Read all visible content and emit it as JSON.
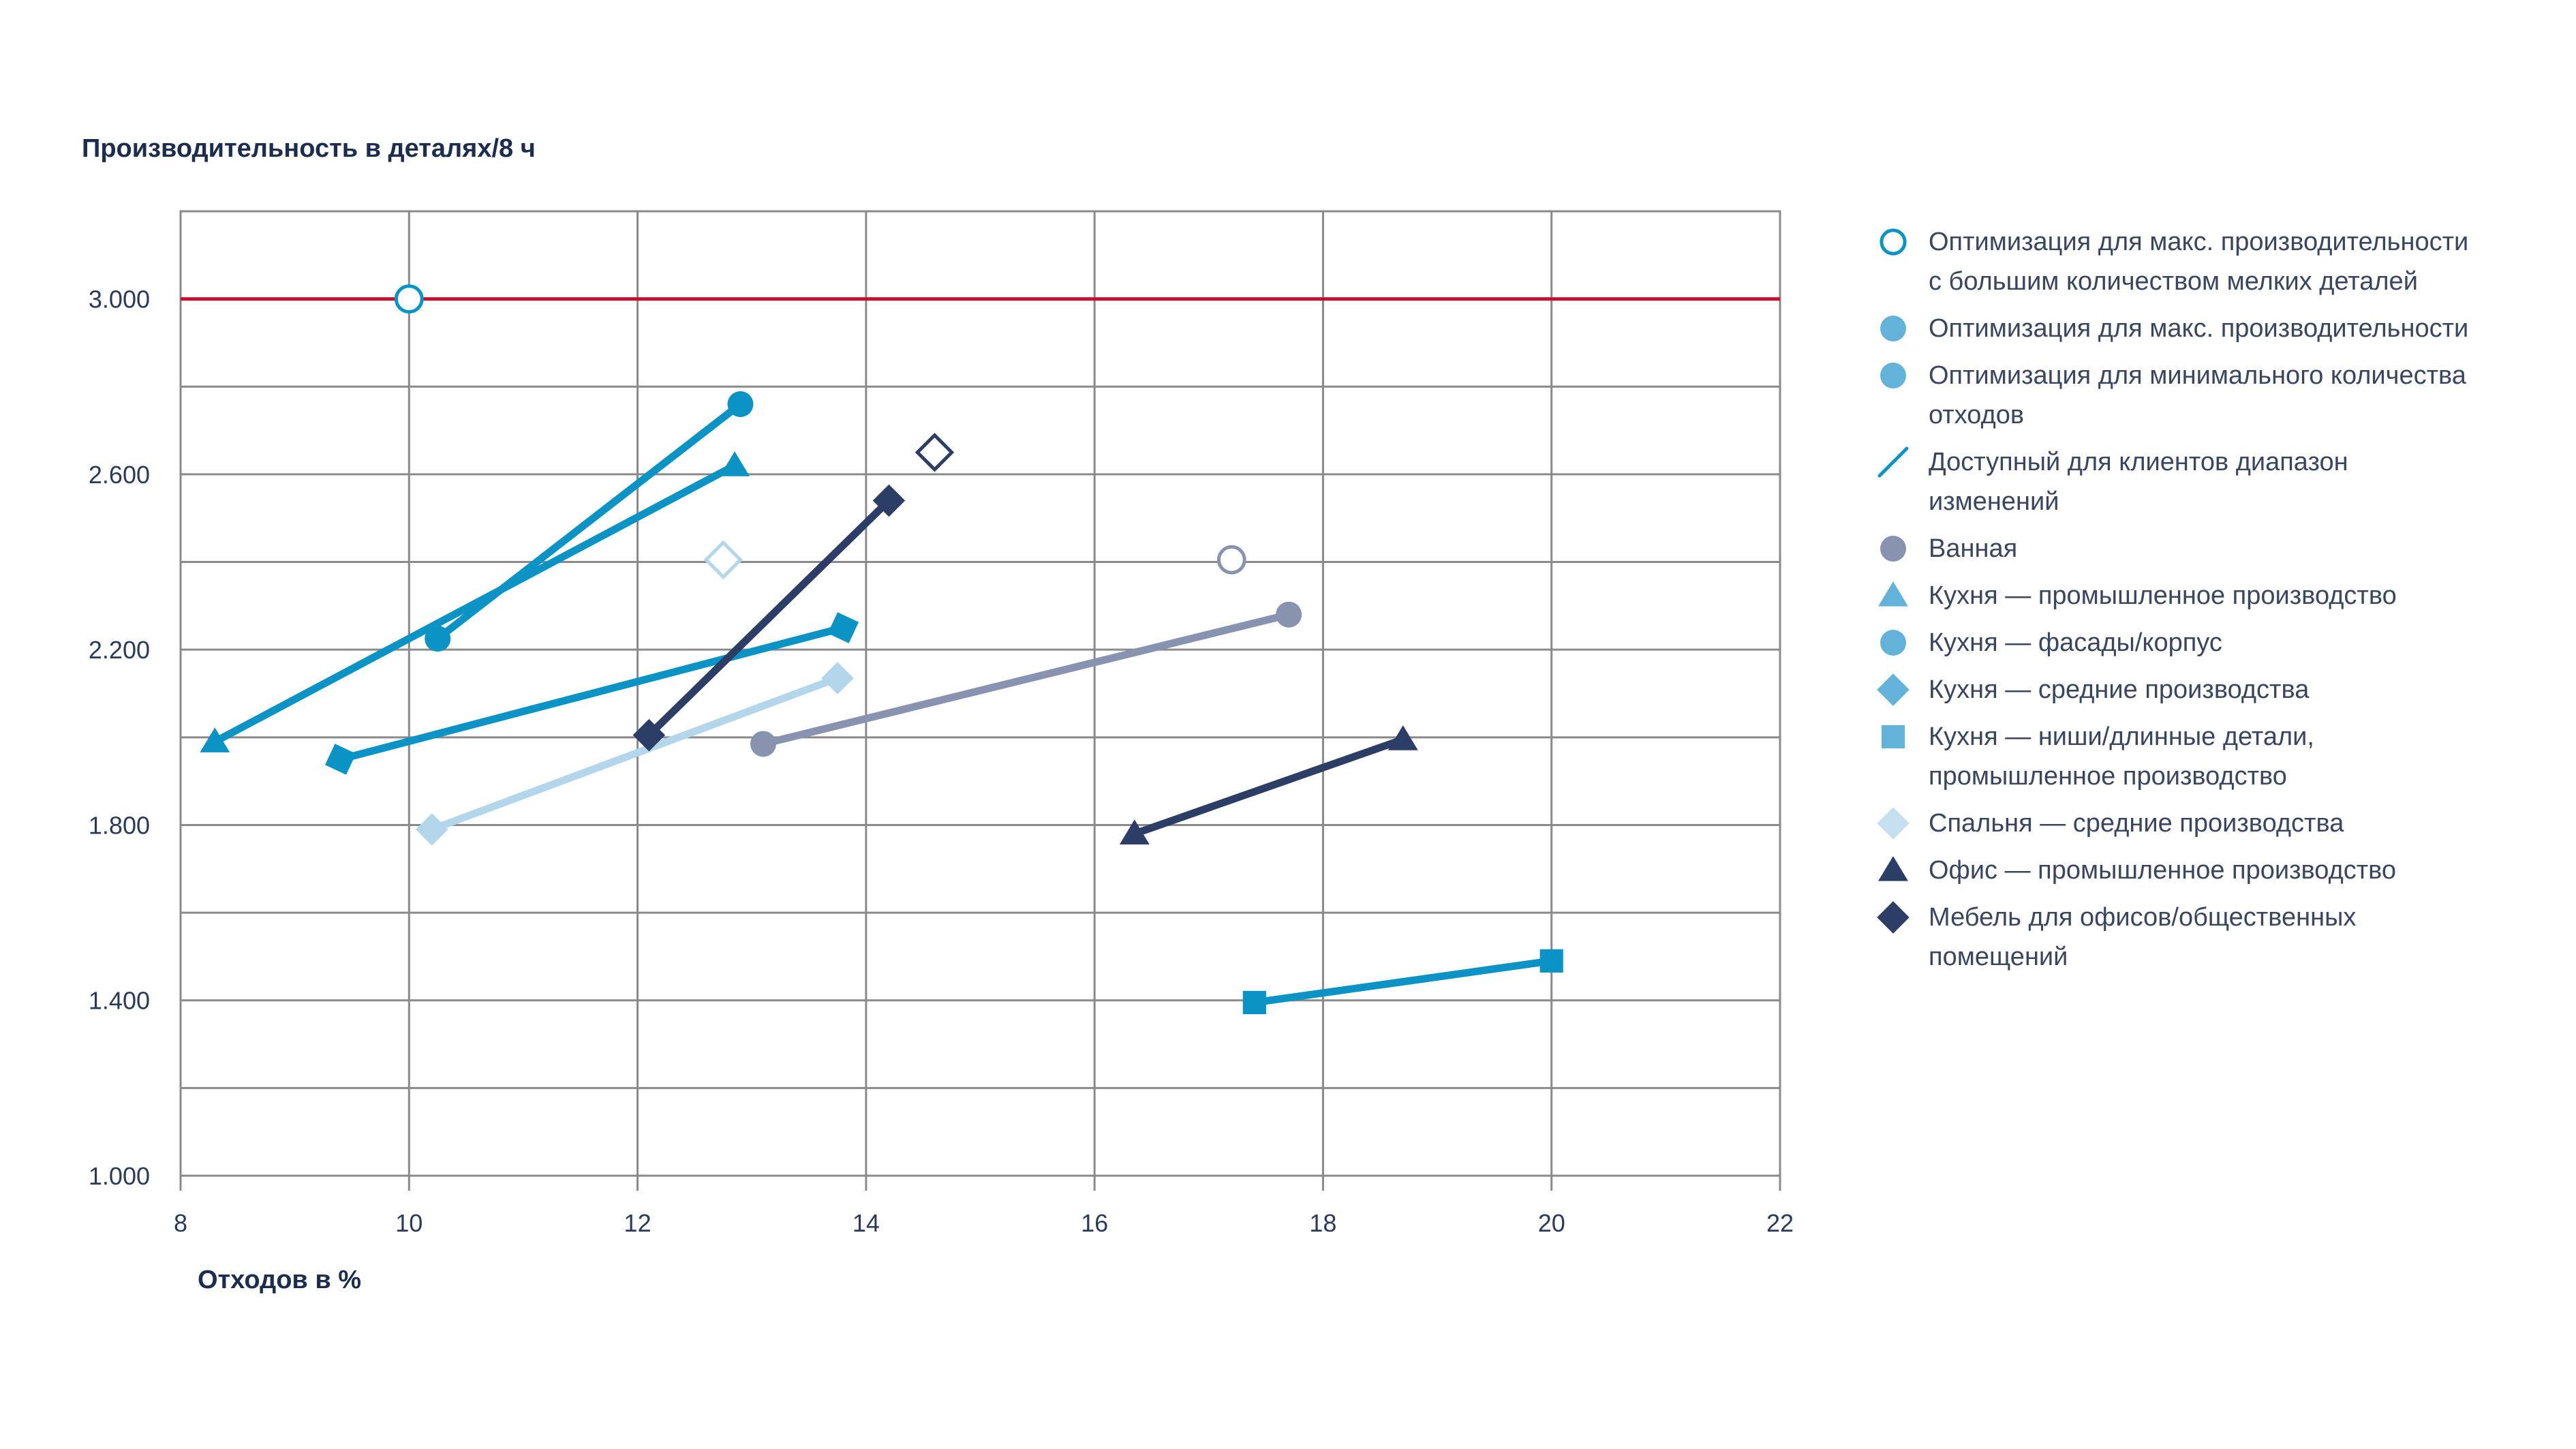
{
  "chart_data": {
    "type": "scatter",
    "title": "",
    "ylabel": "Производительность в деталях/8 ч",
    "xlabel": "Отходов в %",
    "xlim": [
      8,
      22
    ],
    "ylim": [
      1000,
      3200
    ],
    "x_ticks": [
      8,
      10,
      12,
      14,
      16,
      18,
      20,
      22
    ],
    "x_tick_labels": [
      "8",
      "10",
      "12",
      "14",
      "16",
      "18",
      "20",
      "22"
    ],
    "y_ticks": [
      1000,
      1400,
      1800,
      2200,
      2600,
      3000
    ],
    "y_tick_labels": [
      "1.000",
      "1.400",
      "1.800",
      "2.200",
      "2.600",
      "3.000"
    ],
    "grid": true,
    "legend_position": "right",
    "reference_line": {
      "y": 3000,
      "color": "#c8102e"
    },
    "colors": {
      "primary": "#0a93c4",
      "bath": "#8893b0",
      "bedroom": "#b3d6ea",
      "dark": "#2c3e66",
      "legend_light": "#62b2d9"
    },
    "series": [
      {
        "marker": "circle",
        "color": "#0a93c4",
        "points": [
          [
            10.25,
            2225
          ],
          [
            12.9,
            2760
          ]
        ]
      },
      {
        "marker": "triangle",
        "color": "#0a93c4",
        "points": [
          [
            8.3,
            1990
          ],
          [
            12.85,
            2620
          ]
        ]
      },
      {
        "marker": "square-diamond",
        "color": "#0a93c4",
        "points": [
          [
            9.4,
            1950
          ],
          [
            13.8,
            2250
          ]
        ]
      },
      {
        "marker": "square",
        "color": "#0a93c4",
        "points": [
          [
            17.4,
            1395
          ],
          [
            20.0,
            1490
          ]
        ]
      },
      {
        "marker": "diamond",
        "color": "#b3d6ea",
        "points": [
          [
            10.2,
            1790
          ],
          [
            13.75,
            2135
          ]
        ]
      },
      {
        "marker": "circle",
        "color": "#8893b0",
        "points": [
          [
            13.1,
            1985
          ],
          [
            17.7,
            2280
          ]
        ]
      },
      {
        "marker": "diamond",
        "color": "#2c3e66",
        "points": [
          [
            12.1,
            2005
          ],
          [
            14.2,
            2540
          ]
        ]
      },
      {
        "marker": "triangle",
        "color": "#2c3e66",
        "points": [
          [
            16.35,
            1780
          ],
          [
            18.7,
            1995
          ]
        ]
      }
    ],
    "annotations": [
      {
        "marker": "circle-open",
        "color": "#0a93c4",
        "x": 10.0,
        "y": 3000
      },
      {
        "marker": "diamond-open",
        "color": "#b3d6ea",
        "x": 12.75,
        "y": 2405
      },
      {
        "marker": "diamond-open",
        "color": "#2c3e66",
        "x": 14.6,
        "y": 2650
      },
      {
        "marker": "circle-open",
        "color": "#8893b0",
        "x": 17.2,
        "y": 2405
      }
    ],
    "legend": [
      {
        "icon": "circle-open",
        "color": "#0a93c4",
        "lines": [
          "Оптимизация для макс. производительности",
          "с большим количеством мелких деталей"
        ]
      },
      {
        "icon": "circle",
        "color": "#62b2d9",
        "lines": [
          "Оптимизация для макс. производительности"
        ]
      },
      {
        "icon": "circle",
        "color": "#62b2d9",
        "lines": [
          "Оптимизация для минимального количества",
          "отходов"
        ]
      },
      {
        "icon": "line",
        "color": "#0a93c4",
        "lines": [
          "Доступный для клиентов диапазон",
          "изменений"
        ]
      },
      {
        "icon": "circle",
        "color": "#8893b0",
        "lines": [
          "Ванная"
        ]
      },
      {
        "icon": "triangle",
        "color": "#62b2d9",
        "lines": [
          "Кухня — промышленное производство"
        ]
      },
      {
        "icon": "circle",
        "color": "#62b2d9",
        "lines": [
          "Кухня — фасады/корпус"
        ]
      },
      {
        "icon": "diamond",
        "color": "#62b2d9",
        "lines": [
          "Кухня — средние производства"
        ]
      },
      {
        "icon": "square",
        "color": "#62b2d9",
        "lines": [
          "Кухня — ниши/длинные детали,",
          "промышленное производство"
        ]
      },
      {
        "icon": "diamond",
        "color": "#c6e0f0",
        "lines": [
          "Спальня — средние производства"
        ]
      },
      {
        "icon": "triangle",
        "color": "#2c3e66",
        "lines": [
          "Офис — промышленное производство"
        ]
      },
      {
        "icon": "diamond",
        "color": "#2c3e66",
        "lines": [
          "Мебель для офисов/общественных",
          "помещений"
        ]
      }
    ]
  }
}
